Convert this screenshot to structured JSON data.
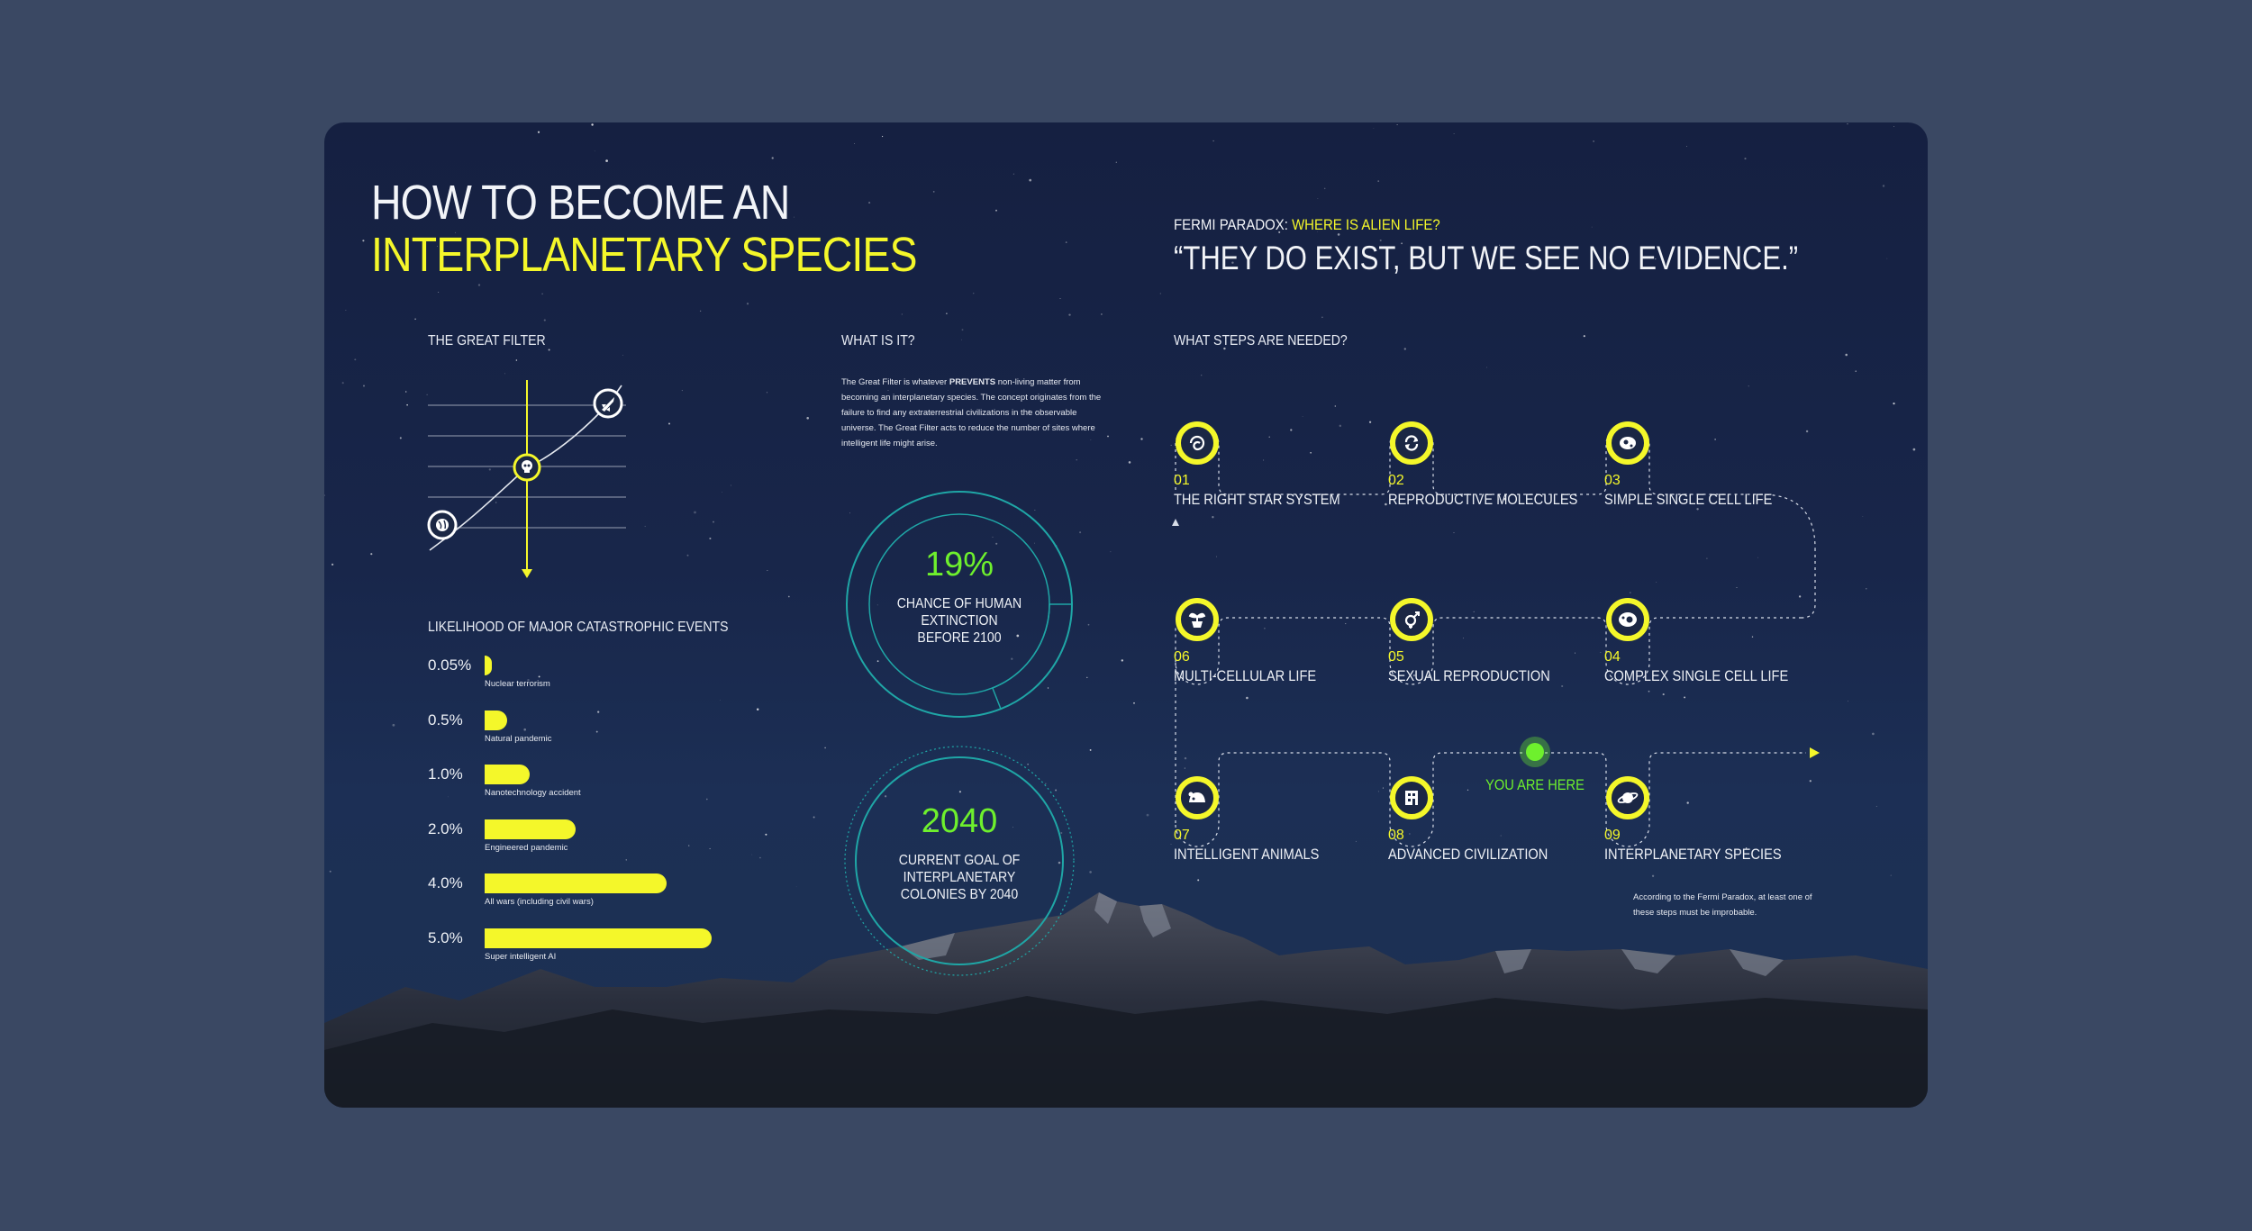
{
  "header": {
    "title_line1": "HOW TO BECOME AN",
    "title_line2": "INTERPLANETARY SPECIES",
    "fermi_prefix": "FERMI PARADOX: ",
    "fermi_question": "WHERE IS ALIEN LIFE?",
    "quote": "“THEY DO EXIST, BUT WE SEE NO EVIDENCE.”"
  },
  "colors": {
    "accent": "#f4f72a",
    "highlight": "#6ef02d",
    "ring": "#1fa6a6",
    "background": "#3a4863"
  },
  "great_filter": {
    "heading": "THE GREAT FILTER",
    "icons": [
      "globe-icon",
      "skull-icon",
      "rocket-icon"
    ]
  },
  "what_is_it": {
    "heading": "WHAT IS IT?",
    "text_before": "The Great Filter is whatever ",
    "text_bold": "PREVENTS",
    "text_after": " non-living matter from becoming an interplanetary species. The concept originates from the failure to find any extraterrestrial civilizations in the observable universe. The Great Filter acts to reduce the number of sites where intelligent life might arise."
  },
  "stats": {
    "extinction_value": "19%",
    "extinction_label": "CHANCE OF HUMAN EXTINCTION BEFORE 2100",
    "extinction_fraction": 0.19,
    "colonies_value": "2040",
    "colonies_label": "CURRENT GOAL OF INTERPLANETARY COLONIES BY 2040"
  },
  "chart_data": {
    "type": "bar",
    "orientation": "horizontal",
    "title": "LIKELIHOOD OF MAJOR CATASTROPHIC EVENTS",
    "categories": [
      "Nuclear terrorism",
      "Natural pandemic",
      "Nanotechnology accident",
      "Engineered pandemic",
      "All wars (including civil wars)",
      "Super intelligent AI"
    ],
    "values": [
      0.05,
      0.5,
      1.0,
      2.0,
      4.0,
      5.0
    ],
    "value_labels": [
      "0.05%",
      "0.5%",
      "1.0%",
      "2.0%",
      "4.0%",
      "5.0%"
    ],
    "unit": "%",
    "xlim": [
      0,
      5
    ],
    "grid": false
  },
  "steps": {
    "heading": "WHAT STEPS ARE NEEDED?",
    "items": [
      {
        "num": "01",
        "label": "THE RIGHT STAR SYSTEM",
        "icon": "galaxy-icon"
      },
      {
        "num": "02",
        "label": "REPRODUCTIVE MOLECULES",
        "icon": "recycle-icon"
      },
      {
        "num": "03",
        "label": "SIMPLE SINGLE CELL LIFE",
        "icon": "cell-icon"
      },
      {
        "num": "04",
        "label": "COMPLEX SINGLE CELL LIFE",
        "icon": "complex-cell-icon"
      },
      {
        "num": "05",
        "label": "SEXUAL REPRODUCTION",
        "icon": "gender-icon"
      },
      {
        "num": "06",
        "label": "MULTI-CELLULAR LIFE",
        "icon": "plant-icon"
      },
      {
        "num": "07",
        "label": "INTELLIGENT ANIMALS",
        "icon": "animal-icon"
      },
      {
        "num": "08",
        "label": "ADVANCED CIVILIZATION",
        "icon": "city-icon"
      },
      {
        "num": "09",
        "label": "INTERPLANETARY SPECIES",
        "icon": "planet-icon"
      }
    ],
    "you_are_here": "YOU ARE HERE",
    "note": "According to the Fermi Paradox, at least one of these steps must be improbable."
  }
}
